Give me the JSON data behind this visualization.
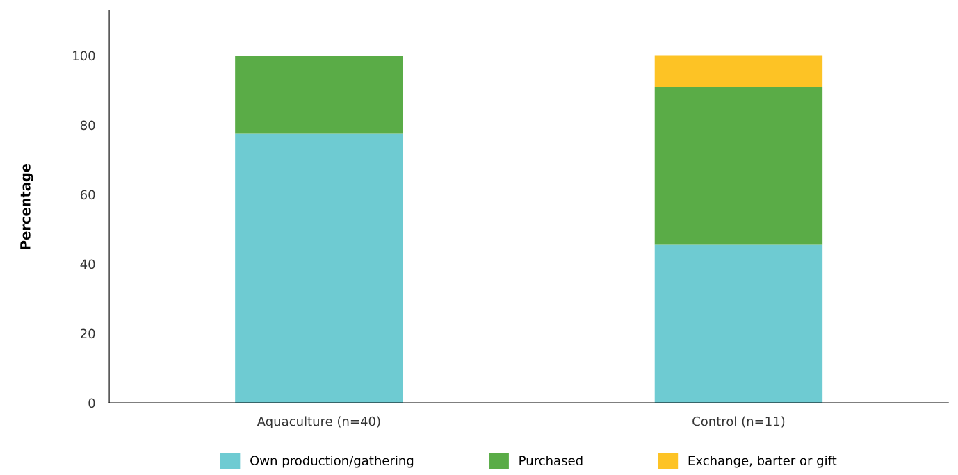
{
  "chart_data": {
    "type": "bar",
    "stacked": true,
    "ylabel": "Percentage",
    "categories": [
      "Aquaculture (n=40)",
      "Control (n=11)"
    ],
    "series": [
      {
        "name": "Own production/gathering",
        "color": "#6ecbd2",
        "values": [
          77.5,
          45.5
        ]
      },
      {
        "name": "Purchased",
        "color": "#5aac47",
        "values": [
          22.5,
          45.5
        ]
      },
      {
        "name": "Exchange, barter or gift",
        "color": "#fdc325",
        "values": [
          null,
          9.1
        ]
      }
    ],
    "ylim": [
      0,
      113
    ],
    "yticks": [
      0,
      20,
      40,
      60,
      80,
      100
    ],
    "grid": false,
    "legend": "bottom"
  }
}
